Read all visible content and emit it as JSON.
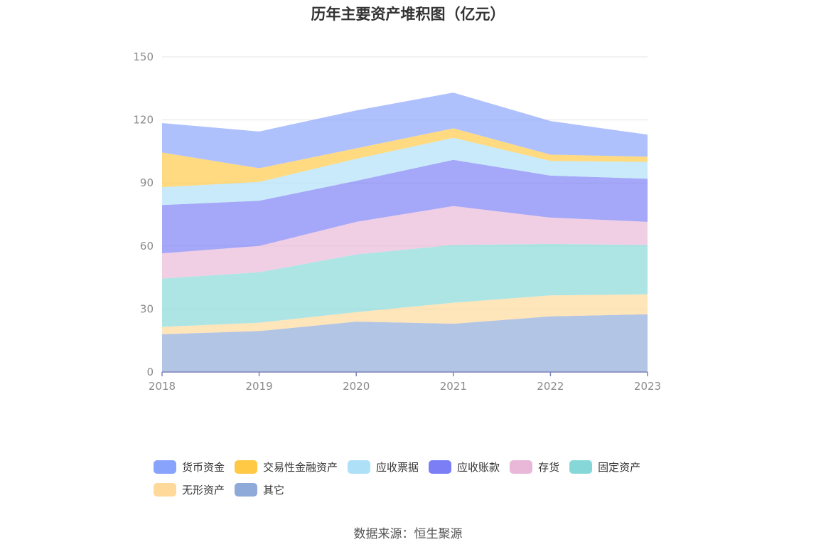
{
  "chart_data": {
    "type": "area",
    "title": "历年主要资产堆积图（亿元）",
    "stacked": true,
    "x": [
      "2018",
      "2019",
      "2020",
      "2021",
      "2022",
      "2023"
    ],
    "ylim": [
      0,
      150
    ],
    "yticks": [
      "0",
      "30",
      "60",
      "90",
      "120",
      "150"
    ],
    "grid": true,
    "legend_position": "bottom",
    "series": [
      {
        "name": "其它",
        "color": "#8fa9d9",
        "values": [
          18,
          19.5,
          24,
          23,
          26.5,
          27.5
        ]
      },
      {
        "name": "无形资产",
        "color": "#ffd99a",
        "values": [
          3.5,
          4,
          4.5,
          10,
          10,
          9.5
        ]
      },
      {
        "name": "固定资产",
        "color": "#86d8d8",
        "values": [
          23,
          24,
          27.5,
          27.5,
          24.5,
          23.5
        ]
      },
      {
        "name": "存货",
        "color": "#e9b8d8",
        "values": [
          12,
          12.5,
          15.5,
          18.5,
          12.5,
          11
        ]
      },
      {
        "name": "应收账款",
        "color": "#7b7ef5",
        "values": [
          23,
          21.5,
          19.5,
          22,
          20,
          20.5
        ]
      },
      {
        "name": "应收票据",
        "color": "#aee0f8",
        "values": [
          8.5,
          9,
          10.5,
          10.5,
          7,
          8
        ]
      },
      {
        "name": "交易性金融资产",
        "color": "#ffc845",
        "values": [
          16.5,
          6.5,
          5,
          4.5,
          3,
          2.5
        ]
      },
      {
        "name": "货币资金",
        "color": "#88a3fc",
        "values": [
          14,
          17.5,
          18,
          17,
          16,
          10.5
        ]
      }
    ]
  },
  "legend_order": [
    [
      "货币资金",
      "交易性金融资产",
      "应收票据",
      "应收账款",
      "存货",
      "固定资产"
    ],
    [
      "无形资产",
      "其它"
    ]
  ],
  "source": "数据来源：恒生聚源"
}
